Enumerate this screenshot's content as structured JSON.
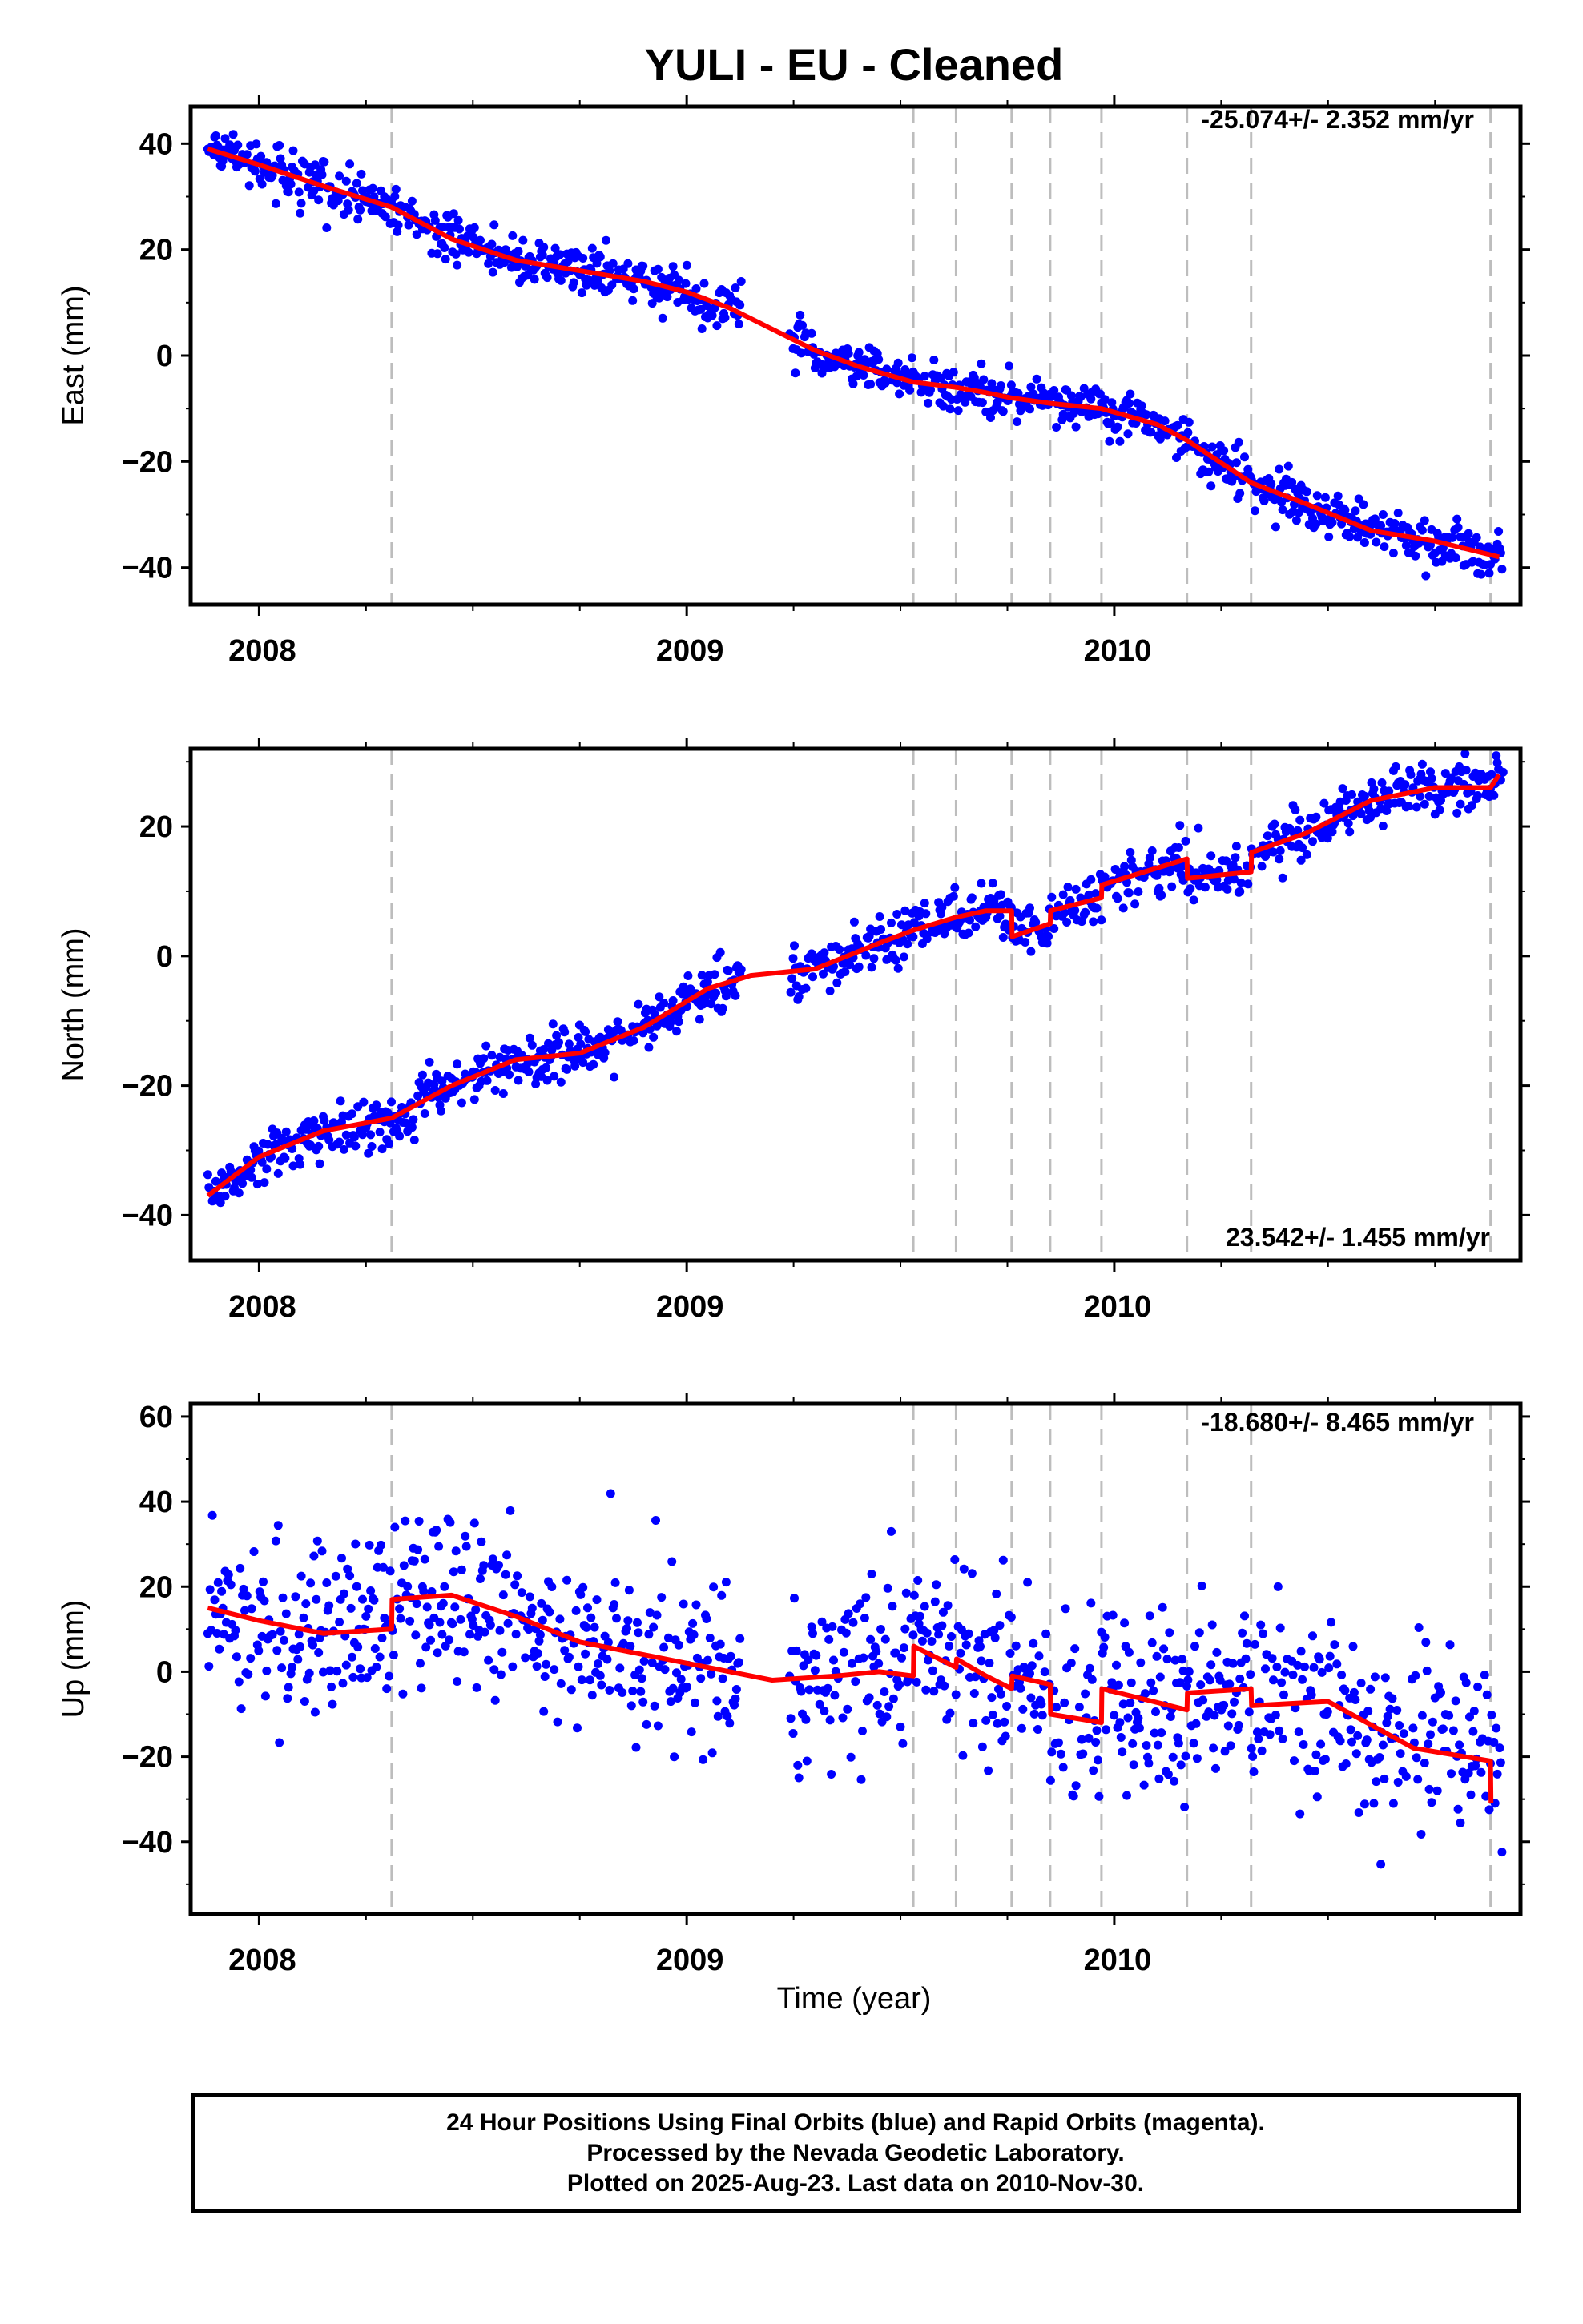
{
  "chart_data": [
    {
      "type": "scatter",
      "title": "YULI  - EU - Cleaned",
      "xlabel": "",
      "ylabel": "East (mm)",
      "xlim": [
        2007.84,
        2010.95
      ],
      "ylim": [
        -47,
        47
      ],
      "x_ticks": [
        2008,
        2009,
        2010
      ],
      "y_ticks": [
        -40,
        -20,
        0,
        20,
        40
      ],
      "rate_label": "-25.074+/- 2.352 mm/yr",
      "grid": false,
      "breaks": [
        2008.31,
        2009.53,
        2009.63,
        2009.76,
        2009.85,
        2009.97,
        2010.17,
        2010.32,
        2010.88
      ],
      "series": [
        {
          "role": "data",
          "color": "#0000ff",
          "x": [],
          "y": []
        },
        {
          "role": "model",
          "color": "#ff0000",
          "x": [
            2007.88,
            2008.0,
            2008.15,
            2008.31,
            2008.45,
            2008.6,
            2008.75,
            2008.9,
            2009.0,
            2009.1,
            2009.2,
            2009.3,
            2009.4,
            2009.53,
            2009.63,
            2009.7,
            2009.76,
            2009.85,
            2009.97,
            2010.1,
            2010.17,
            2010.32,
            2010.45,
            2010.6,
            2010.75,
            2010.9
          ],
          "y": [
            39,
            36,
            32,
            28,
            22,
            18,
            16,
            14,
            12,
            9,
            5,
            1,
            -2,
            -5,
            -6,
            -7,
            -8,
            -9,
            -10,
            -13,
            -16,
            -24,
            -28,
            -33,
            -35,
            -38
          ]
        }
      ]
    },
    {
      "type": "scatter",
      "title": "",
      "xlabel": "",
      "ylabel": "North (mm)",
      "xlim": [
        2007.84,
        2010.95
      ],
      "ylim": [
        -47,
        32
      ],
      "x_ticks": [
        2008,
        2009,
        2010
      ],
      "y_ticks": [
        -40,
        -20,
        0,
        20
      ],
      "rate_label": "23.542+/- 1.455 mm/yr",
      "grid": false,
      "breaks": [
        2008.31,
        2009.53,
        2009.63,
        2009.76,
        2009.85,
        2009.97,
        2010.17,
        2010.32,
        2010.88
      ],
      "series": [
        {
          "role": "data",
          "color": "#0000ff",
          "x": [],
          "y": []
        },
        {
          "role": "model",
          "color": "#ff0000",
          "x": [
            2007.88,
            2008.0,
            2008.15,
            2008.31,
            2008.45,
            2008.6,
            2008.75,
            2008.9,
            2009.05,
            2009.15,
            2009.3,
            2009.45,
            2009.53,
            2009.63,
            2009.7,
            2009.76,
            2009.761,
            2009.85,
            2009.851,
            2009.97,
            2009.971,
            2010.17,
            2010.171,
            2010.32,
            2010.321,
            2010.45,
            2010.6,
            2010.75,
            2010.88,
            2010.9
          ],
          "y": [
            -37,
            -31,
            -27,
            -25,
            -20,
            -16,
            -15,
            -11,
            -5,
            -3,
            -2,
            2,
            4,
            6,
            7,
            7,
            3,
            5,
            7,
            9,
            11,
            15,
            12,
            13,
            16,
            19,
            24,
            26,
            26,
            28
          ]
        }
      ]
    },
    {
      "type": "scatter",
      "title": "",
      "xlabel": "Time (year)",
      "ylabel": "Up (mm)",
      "xlim": [
        2007.84,
        2010.95
      ],
      "ylim": [
        -57,
        63
      ],
      "x_ticks": [
        2008,
        2009,
        2010
      ],
      "y_ticks": [
        -40,
        -20,
        0,
        20,
        40,
        60
      ],
      "rate_label": "-18.680+/- 8.465 mm/yr",
      "grid": false,
      "breaks": [
        2008.31,
        2009.53,
        2009.63,
        2009.76,
        2009.85,
        2009.97,
        2010.17,
        2010.32,
        2010.88
      ],
      "series": [
        {
          "role": "data",
          "color": "#0000ff",
          "x": [],
          "y": []
        },
        {
          "role": "model",
          "color": "#ff0000",
          "x": [
            2007.88,
            2008.0,
            2008.15,
            2008.31,
            2008.311,
            2008.45,
            2008.6,
            2008.75,
            2008.9,
            2009.05,
            2009.2,
            2009.35,
            2009.45,
            2009.53,
            2009.531,
            2009.63,
            2009.631,
            2009.7,
            2009.76,
            2009.761,
            2009.85,
            2009.851,
            2009.97,
            2009.971,
            2010.17,
            2010.171,
            2010.32,
            2010.321,
            2010.5,
            2010.7,
            2010.88,
            2010.881
          ],
          "y": [
            15,
            12,
            9,
            10,
            17,
            18,
            13,
            7,
            4,
            1,
            -2,
            -1,
            0,
            -1,
            6,
            1,
            3,
            -1,
            -4,
            -1,
            -3,
            -10,
            -12,
            -4,
            -9,
            -5,
            -4,
            -8,
            -7,
            -18,
            -21,
            -31
          ]
        }
      ]
    }
  ],
  "footer": {
    "line1": "24 Hour Positions Using Final Orbits (blue) and Rapid Orbits (magenta).",
    "line2": "Processed by the Nevada Geodetic Laboratory.",
    "line3": "Plotted on 2025-Aug-23. Last data on 2010-Nov-30."
  }
}
